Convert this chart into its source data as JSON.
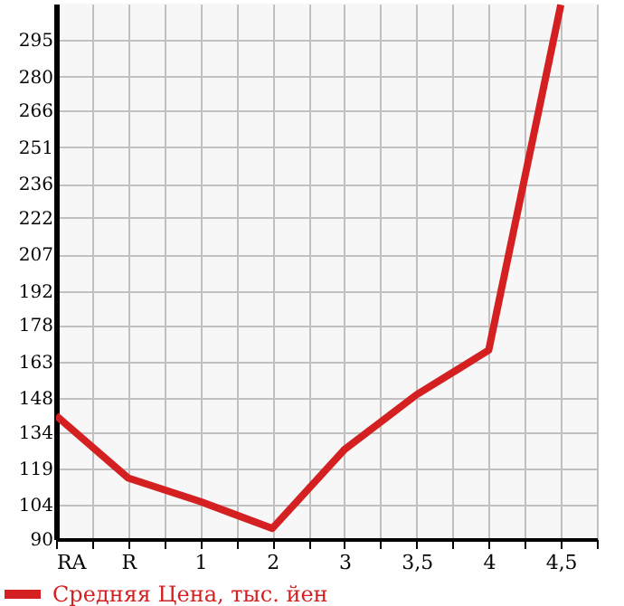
{
  "chart_data": {
    "type": "line",
    "categories": [
      "RA",
      "R",
      "1",
      "2",
      "3",
      "3,5",
      "4",
      "4,5"
    ],
    "series": [
      {
        "name": "Средняя Цена, тыс. йен",
        "color": "#d42020",
        "values": [
          140.7,
          115.1,
          105.4,
          94.4,
          126.8,
          149.3,
          167.6,
          309.5
        ]
      }
    ],
    "ylim": [
      90,
      310
    ],
    "yticks": [
      90,
      104,
      119,
      134,
      148,
      163,
      178,
      192,
      207,
      222,
      236,
      251,
      266,
      280,
      295
    ],
    "grid": true,
    "legend": "bottom",
    "marker": "none",
    "line_style": "solid"
  }
}
